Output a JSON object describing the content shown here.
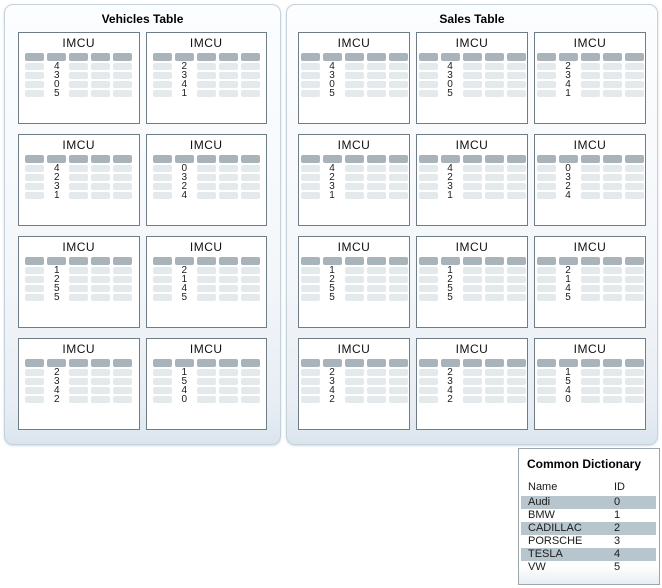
{
  "vehicles_table": {
    "title": "Vehicles Table",
    "imcu_label": "IMCU",
    "columns_per_imcu": 5,
    "value_column_index": 1,
    "imcus": [
      {
        "values": [
          "4",
          "3",
          "0",
          "5"
        ]
      },
      {
        "values": [
          "2",
          "3",
          "4",
          "1"
        ]
      },
      {
        "values": [
          "4",
          "2",
          "3",
          "1"
        ]
      },
      {
        "values": [
          "0",
          "3",
          "2",
          "4"
        ]
      },
      {
        "values": [
          "1",
          "2",
          "5",
          "5"
        ]
      },
      {
        "values": [
          "2",
          "1",
          "4",
          "5"
        ]
      },
      {
        "values": [
          "2",
          "3",
          "4",
          "2"
        ]
      },
      {
        "values": [
          "1",
          "5",
          "4",
          "0"
        ]
      }
    ]
  },
  "sales_table": {
    "title": "Sales Table",
    "imcu_label": "IMCU",
    "columns_per_imcu": 5,
    "value_column_index": 1,
    "imcus": [
      {
        "values": [
          "4",
          "3",
          "0",
          "5"
        ]
      },
      {
        "values": [
          "4",
          "3",
          "0",
          "5"
        ]
      },
      {
        "values": [
          "2",
          "3",
          "4",
          "1"
        ]
      },
      {
        "values": [
          "4",
          "2",
          "3",
          "1"
        ]
      },
      {
        "values": [
          "4",
          "2",
          "3",
          "1"
        ]
      },
      {
        "values": [
          "0",
          "3",
          "2",
          "4"
        ]
      },
      {
        "values": [
          "1",
          "2",
          "5",
          "5"
        ]
      },
      {
        "values": [
          "1",
          "2",
          "5",
          "5"
        ]
      },
      {
        "values": [
          "2",
          "1",
          "4",
          "5"
        ]
      },
      {
        "values": [
          "2",
          "3",
          "4",
          "2"
        ]
      },
      {
        "values": [
          "2",
          "3",
          "4",
          "2"
        ]
      },
      {
        "values": [
          "1",
          "5",
          "4",
          "0"
        ]
      }
    ]
  },
  "common_dictionary": {
    "title": "Common Dictionary",
    "columns": [
      "Name",
      "ID"
    ],
    "rows": [
      {
        "name": "Audi",
        "id": "0"
      },
      {
        "name": "BMW",
        "id": "1"
      },
      {
        "name": "CADILLAC",
        "id": "2"
      },
      {
        "name": "PORSCHE",
        "id": "3"
      },
      {
        "name": "TESLA",
        "id": "4"
      },
      {
        "name": "VW",
        "id": "5"
      }
    ]
  },
  "colors": {
    "panel_border": "#c3d2dd",
    "imcu_border": "#6e7d86",
    "chip_header": "#a9b4ba",
    "chip_cell": "#e4e9eb",
    "dict_border": "#9aa5ac",
    "dict_row_shade": "#b7c6cd"
  }
}
